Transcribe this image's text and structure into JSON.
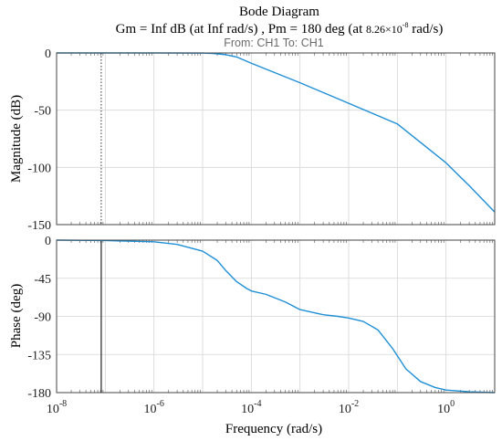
{
  "title": "Bode Diagram",
  "subtitle": {
    "pre": "Gm = Inf dB (at Inf rad/s) ,  Pm = 180 deg (at ",
    "freq_mantissa": "8.26×10",
    "freq_exp": "-8",
    "post": "  rad/s)"
  },
  "io_label": "From: CH1  To: CH1",
  "chart_data": [
    {
      "type": "line",
      "panel": "magnitude",
      "ylabel": "Magnitude (dB)",
      "xscale": "log",
      "xlim": [
        1e-08,
        10
      ],
      "ylim": [
        -150,
        0
      ],
      "yticks": [
        0,
        -50,
        -100,
        -150
      ],
      "grid": true,
      "series": [
        {
          "color": "#1f8fd6",
          "x": [
            1e-08,
            1e-07,
            1e-06,
            1e-05,
            1.6e-05,
            3e-05,
            5e-05,
            0.0001,
            0.001,
            0.01,
            0.1,
            1,
            3,
            10
          ],
          "y": [
            0,
            0,
            0,
            -0.1,
            -0.4,
            -1.5,
            -3.5,
            -9,
            -26,
            -44,
            -62,
            -96,
            -116,
            -139
          ]
        }
      ],
      "stability_marker": {
        "x": 8.26e-08,
        "style": "dotted"
      }
    },
    {
      "type": "line",
      "panel": "phase",
      "ylabel": "Phase (deg)",
      "xlabel": "Frequency  (rad/s)",
      "xscale": "log",
      "xlim": [
        1e-08,
        10
      ],
      "ylim": [
        -180,
        0
      ],
      "yticks": [
        0,
        -45,
        -90,
        -135,
        -180
      ],
      "xticks": [
        {
          "mantissa": "10",
          "exp": "-8"
        },
        {
          "mantissa": "10",
          "exp": "-6"
        },
        {
          "mantissa": "10",
          "exp": "-4"
        },
        {
          "mantissa": "10",
          "exp": "-2"
        },
        {
          "mantissa": "10",
          "exp": "0"
        }
      ],
      "grid": true,
      "series": [
        {
          "color": "#1f8fd6",
          "x": [
            1e-08,
            1e-07,
            1e-06,
            3e-06,
            1e-05,
            2e-05,
            3e-05,
            5e-05,
            8e-05,
            0.0001,
            0.0002,
            0.0005,
            0.001,
            0.003,
            0.006,
            0.01,
            0.02,
            0.04,
            0.08,
            0.15,
            0.3,
            0.6,
            1,
            3,
            10
          ],
          "y": [
            0,
            -0.5,
            -2,
            -5,
            -13,
            -24,
            -36,
            -49,
            -57,
            -60,
            -64,
            -73,
            -82,
            -88,
            -90,
            -92,
            -96,
            -106,
            -128,
            -152,
            -167,
            -174,
            -177,
            -179,
            -180
          ]
        }
      ],
      "stability_marker": {
        "x": 8.26e-08,
        "style": "solid"
      }
    }
  ]
}
